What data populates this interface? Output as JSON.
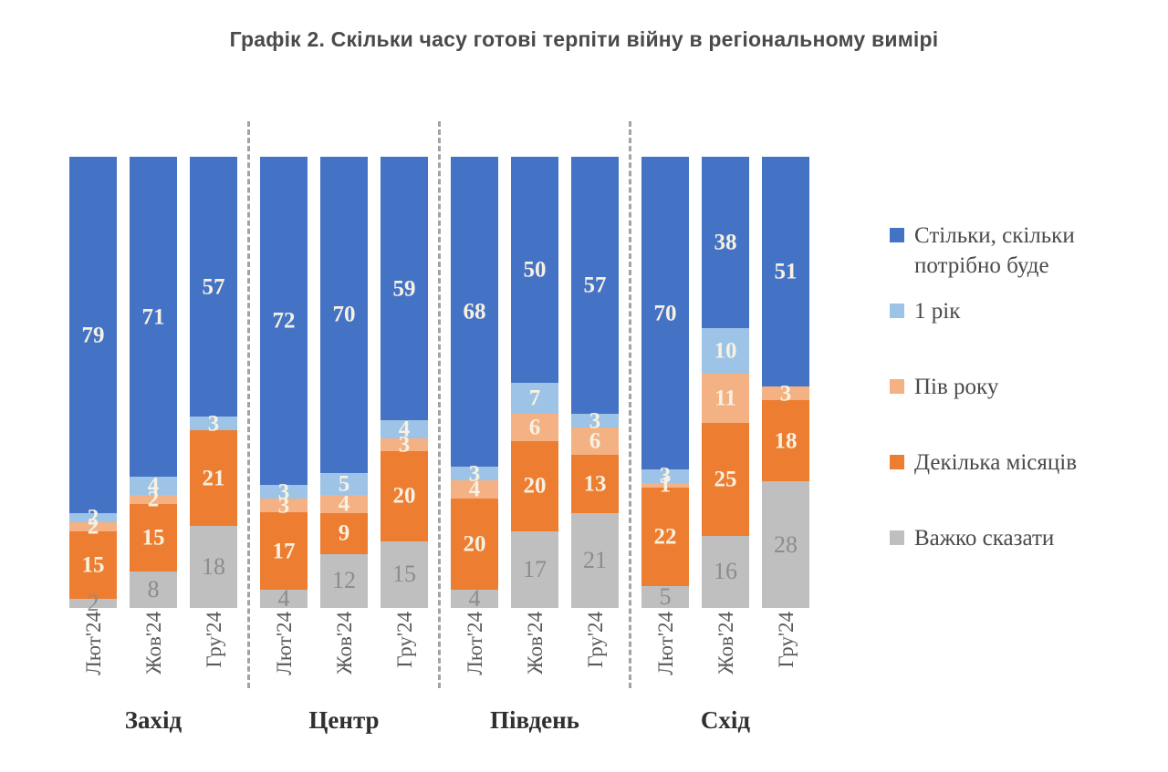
{
  "title": "Графік 2. Скільки часу готові терпіти війну в регіональному вимірі",
  "chart_data": {
    "type": "bar",
    "stacked": true,
    "unit": "percent",
    "title": "Графік 2. Скільки часу готові терпіти війну в регіональному вимірі",
    "axis": {
      "ylim": [
        0,
        100
      ],
      "grid": false,
      "value_labels_on_segments": true
    },
    "legend_position": "right",
    "series_order_bottom_to_top": [
      "hard_to_say",
      "several_months",
      "half_year",
      "one_year",
      "as_long_as_needed"
    ],
    "legend": [
      {
        "key": "as_long_as_needed",
        "label": "Стільки, скільки потрібно буде",
        "color": "#4472C4"
      },
      {
        "key": "one_year",
        "label": "1 рік",
        "color": "#9DC3E6"
      },
      {
        "key": "half_year",
        "label": "Пів року",
        "color": "#F4B183"
      },
      {
        "key": "several_months",
        "label": "Декілька місяців",
        "color": "#ED7D31"
      },
      {
        "key": "hard_to_say",
        "label": "Важко сказати",
        "color": "#BFBFBF"
      }
    ],
    "groups": [
      {
        "label": "Захід",
        "bars": [
          {
            "tick": "Лют'24",
            "values": {
              "hard_to_say": 2,
              "several_months": 15,
              "half_year": 2,
              "one_year": 2,
              "as_long_as_needed": 79
            }
          },
          {
            "tick": "Жов'24",
            "values": {
              "hard_to_say": 8,
              "several_months": 15,
              "half_year": 2,
              "one_year": 4,
              "as_long_as_needed": 71
            }
          },
          {
            "tick": "Гру'24",
            "values": {
              "hard_to_say": 18,
              "several_months": 21,
              "half_year": 0,
              "one_year": 3,
              "as_long_as_needed": 57
            }
          }
        ]
      },
      {
        "label": "Центр",
        "bars": [
          {
            "tick": "Лют'24",
            "values": {
              "hard_to_say": 4,
              "several_months": 17,
              "half_year": 3,
              "one_year": 3,
              "as_long_as_needed": 72
            }
          },
          {
            "tick": "Жов'24",
            "values": {
              "hard_to_say": 12,
              "several_months": 9,
              "half_year": 4,
              "one_year": 5,
              "as_long_as_needed": 70
            }
          },
          {
            "tick": "Гру'24",
            "values": {
              "hard_to_say": 15,
              "several_months": 20,
              "half_year": 3,
              "one_year": 4,
              "as_long_as_needed": 59
            }
          }
        ]
      },
      {
        "label": "Південь",
        "bars": [
          {
            "tick": "Лют'24",
            "values": {
              "hard_to_say": 4,
              "several_months": 20,
              "half_year": 4,
              "one_year": 3,
              "as_long_as_needed": 68
            }
          },
          {
            "tick": "Жов'24",
            "values": {
              "hard_to_say": 17,
              "several_months": 20,
              "half_year": 6,
              "one_year": 7,
              "as_long_as_needed": 50
            }
          },
          {
            "tick": "Гру'24",
            "values": {
              "hard_to_say": 21,
              "several_months": 13,
              "half_year": 6,
              "one_year": 3,
              "as_long_as_needed": 57
            }
          }
        ]
      },
      {
        "label": "Схід",
        "bars": [
          {
            "tick": "Лют'24",
            "values": {
              "hard_to_say": 5,
              "several_months": 22,
              "half_year": 1,
              "one_year": 3,
              "as_long_as_needed": 70
            }
          },
          {
            "tick": "Жов'24",
            "values": {
              "hard_to_say": 16,
              "several_months": 25,
              "half_year": 11,
              "one_year": 10,
              "as_long_as_needed": 38
            }
          },
          {
            "tick": "Гру'24",
            "values": {
              "hard_to_say": 28,
              "several_months": 18,
              "half_year": 3,
              "one_year": 0,
              "as_long_as_needed": 51
            }
          }
        ]
      }
    ],
    "colors": {
      "as_long_as_needed": "#4472C4",
      "one_year": "#9DC3E6",
      "half_year": "#F4B183",
      "several_months": "#ED7D31",
      "hard_to_say": "#BFBFBF"
    }
  }
}
